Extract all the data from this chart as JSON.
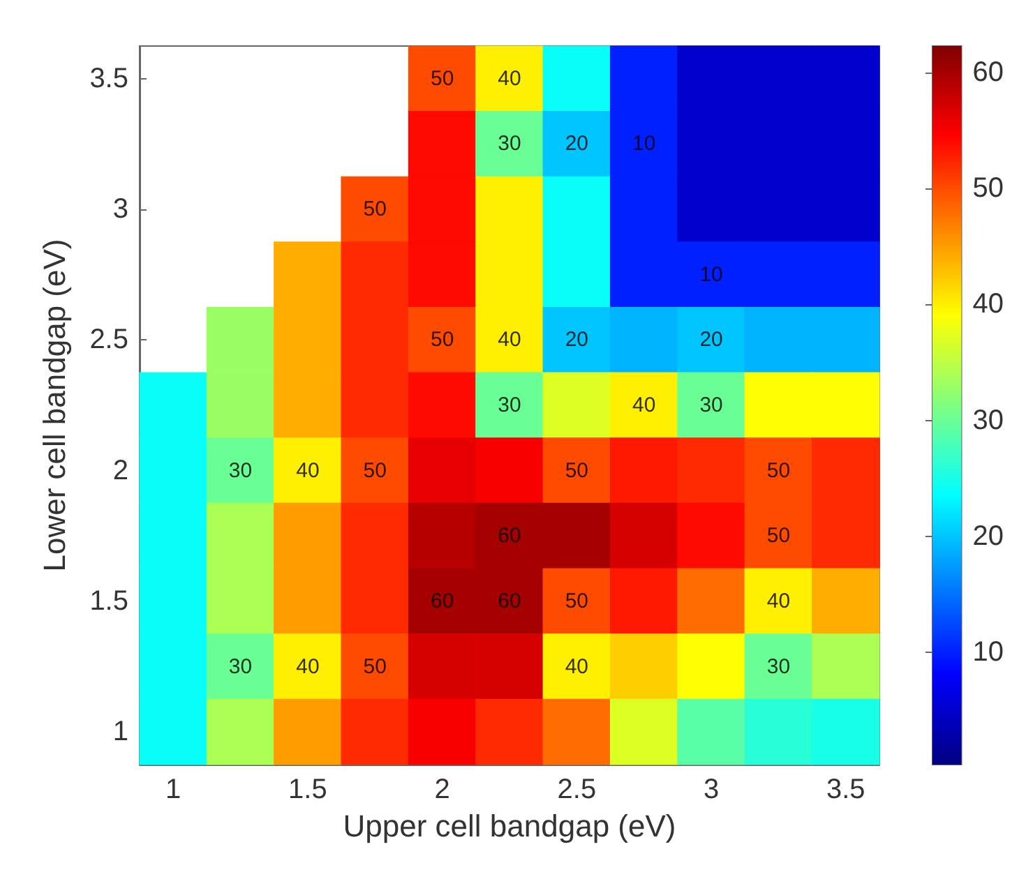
{
  "chart_data": {
    "type": "heatmap",
    "xlabel": "Upper cell bandgap (eV)",
    "ylabel": "Lower cell bandgap (eV)",
    "categories": [
      "1",
      null,
      "1.5",
      null,
      "2",
      null,
      "2.5",
      null,
      "3",
      null,
      "3.5"
    ],
    "y_categories": [
      "3.5",
      null,
      "3",
      null,
      "2.5",
      null,
      "2",
      null,
      "1.5",
      null,
      "1"
    ],
    "cells": [
      [
        null,
        null,
        null,
        null,
        50,
        40,
        24,
        10,
        5,
        5,
        5
      ],
      [
        null,
        null,
        null,
        null,
        54,
        30,
        20,
        10,
        5,
        5,
        5
      ],
      [
        null,
        null,
        null,
        50,
        54,
        40,
        24,
        10,
        5,
        5,
        5
      ],
      [
        null,
        null,
        44,
        52,
        54,
        40,
        24,
        10,
        10,
        10,
        10
      ],
      [
        null,
        33,
        44,
        52,
        50,
        40,
        20,
        19,
        20,
        19,
        19
      ],
      [
        24,
        33,
        44,
        52,
        54,
        30,
        37,
        40,
        30,
        39,
        39
      ],
      [
        24,
        30,
        40,
        50,
        56,
        55,
        50,
        53,
        52,
        50,
        52
      ],
      [
        24,
        34,
        45,
        52,
        59,
        60,
        60,
        57,
        54,
        50,
        52
      ],
      [
        24,
        34,
        45,
        52,
        60,
        60,
        50,
        53,
        48,
        40,
        44
      ],
      [
        24,
        30,
        40,
        50,
        57,
        57,
        40,
        42,
        39,
        30,
        34
      ],
      [
        24,
        34,
        45,
        52,
        55,
        52,
        48,
        37,
        29,
        26,
        25
      ]
    ],
    "cell_labels": [
      [
        null,
        null,
        null,
        null,
        "50",
        "40",
        null,
        null,
        null,
        null,
        null
      ],
      [
        null,
        null,
        null,
        null,
        null,
        "30",
        "20",
        "10",
        null,
        null,
        null
      ],
      [
        null,
        null,
        null,
        "50",
        null,
        null,
        null,
        null,
        null,
        null,
        null
      ],
      [
        null,
        null,
        null,
        null,
        null,
        null,
        null,
        null,
        "10",
        null,
        null
      ],
      [
        null,
        null,
        null,
        null,
        "50",
        "40",
        "20",
        null,
        "20",
        null,
        null
      ],
      [
        null,
        null,
        null,
        null,
        null,
        "30",
        null,
        "40",
        "30",
        null,
        null
      ],
      [
        null,
        "30",
        "40",
        "50",
        null,
        null,
        "50",
        null,
        null,
        "50",
        null
      ],
      [
        null,
        null,
        null,
        null,
        null,
        "60",
        null,
        null,
        null,
        "50",
        null
      ],
      [
        null,
        null,
        null,
        null,
        "60",
        "60",
        "50",
        null,
        null,
        "40",
        null
      ],
      [
        null,
        "30",
        "40",
        "50",
        null,
        null,
        "40",
        null,
        null,
        "30",
        null
      ],
      [
        null,
        null,
        null,
        null,
        null,
        null,
        null,
        null,
        null,
        null,
        null
      ]
    ],
    "clim": [
      0.3,
      62.3
    ],
    "cticks": [
      10,
      20,
      30,
      40,
      50,
      60
    ]
  }
}
